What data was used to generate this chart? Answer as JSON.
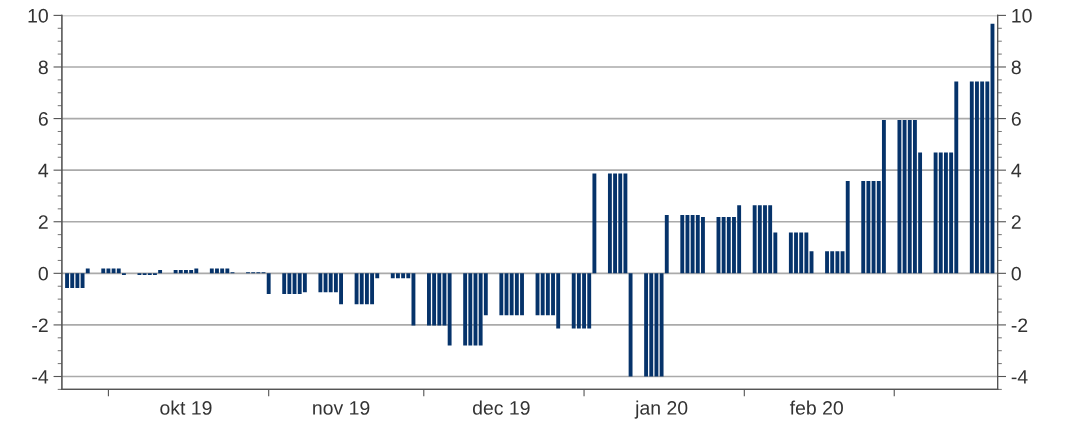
{
  "chart_data": {
    "type": "bar",
    "x": [
      "2019-09-23",
      "2019-09-24",
      "2019-09-25",
      "2019-09-26",
      "2019-09-27",
      "2019-09-30",
      "2019-10-01",
      "2019-10-02",
      "2019-10-03",
      "2019-10-04",
      "2019-10-07",
      "2019-10-08",
      "2019-10-09",
      "2019-10-10",
      "2019-10-11",
      "2019-10-14",
      "2019-10-15",
      "2019-10-16",
      "2019-10-17",
      "2019-10-18",
      "2019-10-21",
      "2019-10-22",
      "2019-10-23",
      "2019-10-24",
      "2019-10-25",
      "2019-10-28",
      "2019-10-29",
      "2019-10-30",
      "2019-10-31",
      "2019-11-01",
      "2019-11-04",
      "2019-11-05",
      "2019-11-06",
      "2019-11-07",
      "2019-11-08",
      "2019-11-11",
      "2019-11-12",
      "2019-11-13",
      "2019-11-14",
      "2019-11-15",
      "2019-11-18",
      "2019-11-19",
      "2019-11-20",
      "2019-11-21",
      "2019-11-22",
      "2019-11-25",
      "2019-11-26",
      "2019-11-27",
      "2019-11-28",
      "2019-11-29",
      "2019-12-02",
      "2019-12-03",
      "2019-12-04",
      "2019-12-05",
      "2019-12-06",
      "2019-12-09",
      "2019-12-10",
      "2019-12-11",
      "2019-12-12",
      "2019-12-13",
      "2019-12-16",
      "2019-12-17",
      "2019-12-18",
      "2019-12-19",
      "2019-12-20",
      "2019-12-23",
      "2019-12-24",
      "2019-12-25",
      "2019-12-26",
      "2019-12-27",
      "2019-12-30",
      "2019-12-31",
      "2020-01-01",
      "2020-01-02",
      "2020-01-03",
      "2020-01-06",
      "2020-01-07",
      "2020-01-08",
      "2020-01-09",
      "2020-01-10",
      "2020-01-13",
      "2020-01-14",
      "2020-01-15",
      "2020-01-16",
      "2020-01-17",
      "2020-01-20",
      "2020-01-21",
      "2020-01-22",
      "2020-01-23",
      "2020-01-24",
      "2020-01-27",
      "2020-01-28",
      "2020-01-29",
      "2020-01-30",
      "2020-01-31",
      "2020-02-03",
      "2020-02-04",
      "2020-02-05",
      "2020-02-06",
      "2020-02-07",
      "2020-02-10",
      "2020-02-11",
      "2020-02-12",
      "2020-02-13",
      "2020-02-14",
      "2020-02-17",
      "2020-02-18",
      "2020-02-19",
      "2020-02-20",
      "2020-02-21",
      "2020-02-24",
      "2020-02-25",
      "2020-02-26",
      "2020-02-27",
      "2020-02-28",
      "2020-03-02",
      "2020-03-03",
      "2020-03-04",
      "2020-03-05",
      "2020-03-06",
      "2020-03-09",
      "2020-03-10",
      "2020-03-11",
      "2020-03-12",
      "2020-03-13",
      "2020-03-16",
      "2020-03-17",
      "2020-03-18",
      "2020-03-19",
      "2020-03-20"
    ],
    "series": [
      {
        "color": "#06336a",
        "values": [
          -0.57,
          -0.57,
          -0.57,
          -0.57,
          0.19,
          0.19,
          0.19,
          0.19,
          0.19,
          -0.06,
          -0.06,
          -0.06,
          -0.06,
          -0.06,
          0.13,
          0.13,
          0.13,
          0.13,
          0.13,
          0.19,
          0.19,
          0.19,
          0.19,
          0.19,
          0.04,
          0.04,
          0.04,
          0.04,
          0.04,
          -0.8,
          -0.8,
          -0.8,
          -0.8,
          -0.8,
          -0.73,
          -0.73,
          -0.73,
          -0.73,
          -0.73,
          -1.2,
          -1.2,
          -1.2,
          -1.2,
          -1.2,
          -0.19,
          -0.19,
          -0.19,
          -0.19,
          -0.19,
          -2.02,
          -2.02,
          -2.02,
          -2.02,
          -2.02,
          -2.8,
          -2.8,
          -2.8,
          -2.8,
          -2.8,
          -1.63,
          -1.63,
          -1.63,
          -1.63,
          -1.63,
          -1.63,
          -1.63,
          -1.63,
          -1.63,
          -1.63,
          -2.14,
          -2.14,
          -2.14,
          -2.14,
          -2.14,
          3.87,
          3.87,
          3.87,
          3.87,
          3.87,
          -4.0,
          -4.0,
          -4.0,
          -4.0,
          -4.0,
          2.26,
          2.26,
          2.26,
          2.26,
          2.26,
          2.18,
          2.18,
          2.18,
          2.18,
          2.18,
          2.64,
          2.64,
          2.64,
          2.64,
          2.64,
          1.58,
          1.58,
          1.58,
          1.58,
          1.58,
          0.86,
          0.86,
          0.86,
          0.86,
          0.86,
          3.58,
          3.58,
          3.58,
          3.58,
          3.58,
          5.94,
          5.94,
          5.94,
          5.94,
          5.94,
          4.68,
          4.68,
          4.68,
          4.68,
          4.68,
          7.44,
          7.44,
          7.44,
          7.44,
          7.44,
          9.68
        ]
      }
    ],
    "xlim": [
      "2019-09-22",
      "2020-03-21"
    ],
    "xticks": [
      {
        "value": "2019-10-01",
        "label": null
      },
      {
        "value": "2019-10-16",
        "label": "okt 19"
      },
      {
        "value": "2019-11-01",
        "label": null
      },
      {
        "value": "2019-11-15",
        "label": "nov 19"
      },
      {
        "value": "2019-12-01",
        "label": null
      },
      {
        "value": "2019-12-16",
        "label": "dec 19"
      },
      {
        "value": "2020-01-01",
        "label": null
      },
      {
        "value": "2020-01-16",
        "label": "jan 20"
      },
      {
        "value": "2020-02-01",
        "label": null
      },
      {
        "value": "2020-02-15",
        "label": "feb 20"
      },
      {
        "value": "2020-03-01",
        "label": null
      }
    ],
    "ylim": [
      -4.5,
      10
    ],
    "yticks": [
      -4,
      -2,
      0,
      2,
      4,
      6,
      8,
      10
    ],
    "y2lim": [
      -4.5,
      10
    ],
    "y2ticks": [
      -4,
      -2,
      0,
      2,
      4,
      6,
      8,
      10
    ],
    "grid": "y",
    "legend": false
  }
}
